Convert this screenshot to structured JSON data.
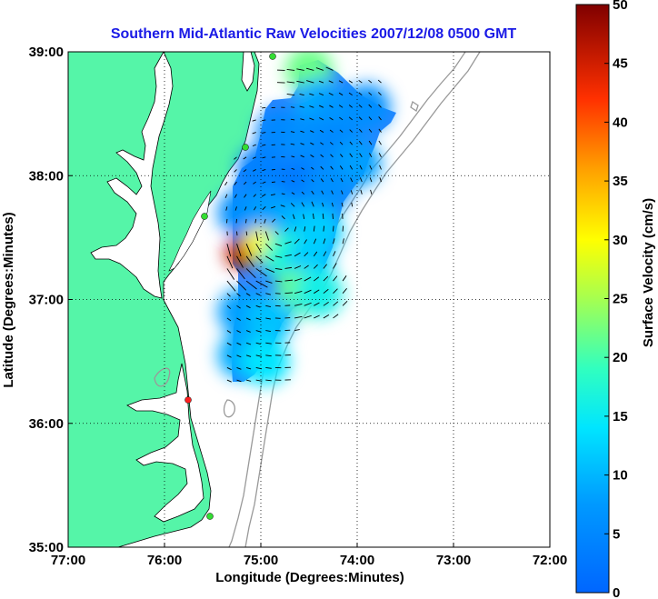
{
  "chart_data": {
    "type": "heatmap",
    "title": "Southern Mid-Atlantic Raw Velocities 2007/12/08 0500 GMT",
    "xlabel": "Longitude (Degrees:Minutes)",
    "ylabel": "Latitude (Degrees:Minutes)",
    "x_ticks": [
      "77:00",
      "76:00",
      "75:00",
      "74:00",
      "73:00",
      "72:00"
    ],
    "y_ticks": [
      "39:00",
      "38:00",
      "37:00",
      "36:00",
      "35:00"
    ],
    "x_range_deg_west": [
      77,
      72
    ],
    "y_range_deg_north": [
      35,
      39
    ],
    "grid": true,
    "colorbar": {
      "label": "Surface Velocity (cm/s)",
      "range": [
        0,
        50
      ],
      "ticks": [
        "50",
        "45",
        "40",
        "35",
        "30",
        "25",
        "20",
        "15",
        "10",
        "5",
        "0"
      ],
      "colormap": "jet"
    },
    "velocity_field": [
      {
        "lon": -74.5,
        "lat": 38.85,
        "speed": 22
      },
      {
        "lon": -74.4,
        "lat": 38.6,
        "speed": 9
      },
      {
        "lon": -74.2,
        "lat": 38.5,
        "speed": 7
      },
      {
        "lon": -73.9,
        "lat": 38.55,
        "speed": 6
      },
      {
        "lon": -74.8,
        "lat": 38.35,
        "speed": 5
      },
      {
        "lon": -74.5,
        "lat": 38.3,
        "speed": 6
      },
      {
        "lon": -74.2,
        "lat": 38.25,
        "speed": 5
      },
      {
        "lon": -74.0,
        "lat": 38.1,
        "speed": 8
      },
      {
        "lon": -75.0,
        "lat": 38.05,
        "speed": 4
      },
      {
        "lon": -74.6,
        "lat": 37.95,
        "speed": 3
      },
      {
        "lon": -74.3,
        "lat": 37.9,
        "speed": 6
      },
      {
        "lon": -75.2,
        "lat": 37.7,
        "speed": 6
      },
      {
        "lon": -74.9,
        "lat": 37.7,
        "speed": 8
      },
      {
        "lon": -74.6,
        "lat": 37.6,
        "speed": 10
      },
      {
        "lon": -74.4,
        "lat": 37.55,
        "speed": 12
      },
      {
        "lon": -75.2,
        "lat": 37.38,
        "speed": 46
      },
      {
        "lon": -75.0,
        "lat": 37.45,
        "speed": 30
      },
      {
        "lon": -74.75,
        "lat": 37.35,
        "speed": 18
      },
      {
        "lon": -74.5,
        "lat": 37.3,
        "speed": 12
      },
      {
        "lon": -74.6,
        "lat": 37.05,
        "speed": 22
      },
      {
        "lon": -74.4,
        "lat": 37.05,
        "speed": 16
      },
      {
        "lon": -75.2,
        "lat": 36.9,
        "speed": 8
      },
      {
        "lon": -74.9,
        "lat": 36.85,
        "speed": 11
      },
      {
        "lon": -75.2,
        "lat": 36.55,
        "speed": 9
      },
      {
        "lon": -74.95,
        "lat": 36.5,
        "speed": 14
      }
    ]
  }
}
